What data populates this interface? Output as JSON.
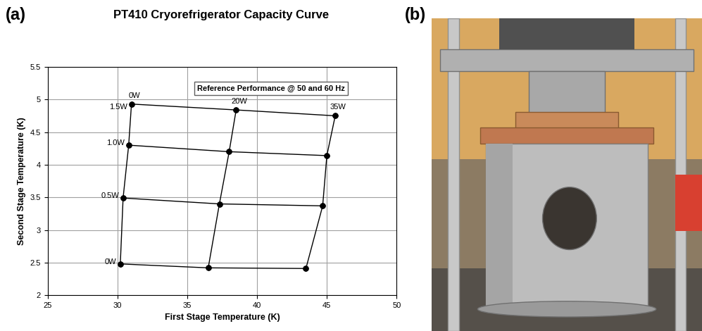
{
  "panel_labels": [
    "(a)",
    "(b)"
  ],
  "chart_data": {
    "type": "line",
    "title": "PT410 Cryorefrigerator Capacity Curve",
    "annotation": "Reference Performance @ 50 and 60 Hz",
    "x_label": "First Stage Temperature (K)",
    "y_label": "Second Stage Temperature (K)",
    "first_stage_loads": [
      "0W",
      "20W",
      "35W"
    ],
    "second_stage_loads": [
      "0W",
      "0.5W",
      "1.0W",
      "1.5W"
    ],
    "first_stage_temperature": [
      [
        30.2,
        36.5,
        43.5
      ],
      [
        30.4,
        37.3,
        44.7
      ],
      [
        30.8,
        38.0,
        45.0
      ],
      [
        31.0,
        38.5,
        45.6
      ]
    ],
    "second_stage_temperature": [
      [
        2.48,
        2.42,
        2.41
      ],
      [
        3.49,
        3.4,
        3.37
      ],
      [
        4.3,
        4.2,
        4.14
      ],
      [
        4.93,
        4.84,
        4.75
      ]
    ],
    "color": "#000000",
    "marker": "circle",
    "line_style": "solid",
    "xlim": [
      25,
      50
    ],
    "ylim": [
      2,
      5.5
    ],
    "xticks": [
      25,
      30,
      35,
      40,
      45,
      50
    ],
    "yticks": [
      2,
      2.5,
      3,
      3.5,
      4,
      4.5,
      5,
      5.5
    ],
    "grid": true
  }
}
